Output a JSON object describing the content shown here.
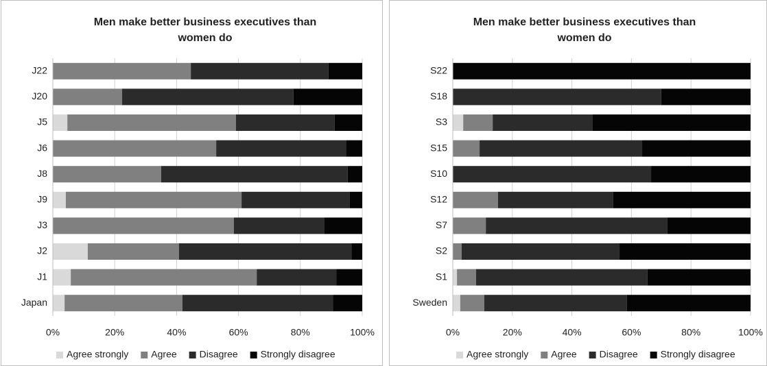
{
  "chart_data": [
    {
      "type": "bar",
      "orientation": "horizontal",
      "stacked": true,
      "title": "Men make better business executives than women do",
      "categories": [
        "J22",
        "J20",
        "J5",
        "J6",
        "J8",
        "J9",
        "J3",
        "J2",
        "J1",
        "Japan"
      ],
      "series": [
        {
          "name": "Agree strongly",
          "color": "#d9d9d9",
          "values": [
            0,
            0,
            4.7,
            0,
            0,
            4.2,
            0,
            11.3,
            5.8,
            3.8
          ]
        },
        {
          "name": "Agree",
          "color": "#808080",
          "values": [
            44.6,
            22.4,
            54.5,
            52.8,
            35.0,
            56.8,
            58.5,
            29.5,
            60.1,
            38.1
          ]
        },
        {
          "name": "Disagree",
          "color": "#2b2b2b",
          "values": [
            44.5,
            55.4,
            31.9,
            42.1,
            60.3,
            35.0,
            29.3,
            55.7,
            25.7,
            48.6
          ]
        },
        {
          "name": "Strongly disagree",
          "color": "#050505",
          "values": [
            10.9,
            22.2,
            8.9,
            5.1,
            4.7,
            4.0,
            12.2,
            3.5,
            8.4,
            9.5
          ]
        }
      ],
      "xlim": [
        0,
        100
      ],
      "xticks": [
        {
          "value": 0,
          "label": "0%"
        },
        {
          "value": 20,
          "label": "20%"
        },
        {
          "value": 40,
          "label": "40%"
        },
        {
          "value": 60,
          "label": "60%"
        },
        {
          "value": 80,
          "label": "80%"
        },
        {
          "value": 100,
          "label": "100%"
        }
      ],
      "grid": true,
      "legend": "bottom"
    },
    {
      "type": "bar",
      "orientation": "horizontal",
      "stacked": true,
      "title": "Men make better business executives than women do",
      "categories": [
        "S22",
        "S18",
        "S3",
        "S15",
        "S10",
        "S12",
        "S7",
        "S2",
        "S1",
        "Sweden"
      ],
      "series": [
        {
          "name": "Agree strongly",
          "color": "#d9d9d9",
          "values": [
            0,
            0,
            3.5,
            0,
            0,
            0,
            0,
            0,
            1.4,
            2.5
          ]
        },
        {
          "name": "Agree",
          "color": "#808080",
          "values": [
            0,
            0,
            9.9,
            9.0,
            0,
            15.2,
            11.1,
            3.0,
            6.4,
            8.1
          ]
        },
        {
          "name": "Disagree",
          "color": "#2b2b2b",
          "values": [
            0,
            70.0,
            33.6,
            54.6,
            66.6,
            38.7,
            61.0,
            53.0,
            57.6,
            47.9
          ]
        },
        {
          "name": "Strongly disagree",
          "color": "#050505",
          "values": [
            100,
            30.0,
            53.0,
            36.4,
            33.4,
            46.1,
            27.9,
            44.0,
            34.6,
            41.5
          ]
        }
      ],
      "xlim": [
        0,
        100
      ],
      "xticks": [
        {
          "value": 0,
          "label": "0%"
        },
        {
          "value": 20,
          "label": "20%"
        },
        {
          "value": 40,
          "label": "40%"
        },
        {
          "value": 60,
          "label": "60%"
        },
        {
          "value": 80,
          "label": "80%"
        },
        {
          "value": 100,
          "label": "100%"
        }
      ],
      "grid": true,
      "legend": "bottom"
    }
  ]
}
